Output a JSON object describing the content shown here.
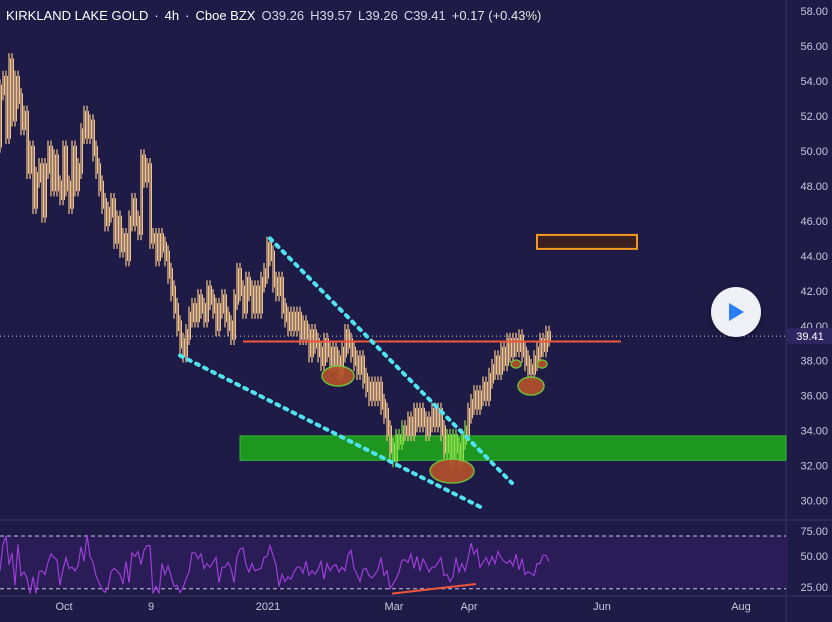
{
  "header": {
    "symbol": "KIRKLAND LAKE GOLD",
    "sep1": "·",
    "interval": "4h",
    "sep2": "·",
    "exchange": "Cboe BZX",
    "open": "O39.26",
    "high": "H39.57",
    "low": "L39.26",
    "close": "C39.41",
    "change": "+0.17 (+0.43%)"
  },
  "colors": {
    "background": "#1f1b47",
    "candle": "#f2c38a",
    "candle_green": "#8be04a",
    "trendline_dotted": "#4fe3f0",
    "resistance_line": "#f0553a",
    "support_zone": "#1e9e1e",
    "target_box_border": "#f39a1e",
    "target_box_fill": "#3a2020",
    "oval_fill": "#b5522a",
    "oval_border": "#7acb3a",
    "rsi_line": "#9b3fd6",
    "rsi_band": "#2a1c57",
    "axis_text": "#c9c6dc"
  },
  "price_axis": {
    "ticks": [
      "58.00",
      "56.00",
      "54.00",
      "52.00",
      "50.00",
      "48.00",
      "46.00",
      "44.00",
      "42.00",
      "40.00",
      "38.00",
      "36.00",
      "34.00",
      "32.00",
      "30.00"
    ],
    "current_price_label": "39.41"
  },
  "rsi_axis": {
    "ticks": [
      "75.00",
      "50.00",
      "50.00",
      "25.00"
    ]
  },
  "time_axis": {
    "labels": [
      "Oct",
      "9",
      "2021",
      "Mar",
      "Apr",
      "Jun",
      "Aug"
    ]
  },
  "chart_data": {
    "type": "candlestick",
    "title": "KIRKLAND LAKE GOLD · 4h · Cboe BZX",
    "ylim": [
      29,
      58.3
    ],
    "current_price": 39.41,
    "price_path": [
      [
        0,
        50.5
      ],
      [
        3,
        53.5
      ],
      [
        6,
        54
      ],
      [
        9,
        51
      ],
      [
        12,
        55
      ],
      [
        15,
        52
      ],
      [
        18,
        54
      ],
      [
        21,
        53
      ],
      [
        24,
        51.5
      ],
      [
        27,
        52
      ],
      [
        30,
        49
      ],
      [
        33,
        50
      ],
      [
        36,
        47
      ],
      [
        39,
        48.5
      ],
      [
        42,
        49
      ],
      [
        45,
        46.5
      ],
      [
        48,
        49
      ],
      [
        51,
        50
      ],
      [
        54,
        48
      ],
      [
        57,
        49.5
      ],
      [
        60,
        48
      ],
      [
        63,
        47.5
      ],
      [
        66,
        50
      ],
      [
        69,
        48
      ],
      [
        72,
        47
      ],
      [
        75,
        50
      ],
      [
        78,
        48
      ],
      [
        81,
        49
      ],
      [
        84,
        51
      ],
      [
        87,
        52
      ],
      [
        90,
        51
      ],
      [
        93,
        51.5
      ],
      [
        96,
        50
      ],
      [
        99,
        49
      ],
      [
        102,
        48
      ],
      [
        105,
        47
      ],
      [
        108,
        46
      ],
      [
        111,
        46.5
      ],
      [
        114,
        47
      ],
      [
        117,
        45
      ],
      [
        120,
        46
      ],
      [
        123,
        44.5
      ],
      [
        126,
        45
      ],
      [
        129,
        44
      ],
      [
        132,
        46
      ],
      [
        135,
        47
      ],
      [
        138,
        46
      ],
      [
        141,
        45.5
      ],
      [
        144,
        49.5
      ],
      [
        147,
        48.5
      ],
      [
        150,
        49
      ],
      [
        153,
        45
      ],
      [
        156,
        45
      ],
      [
        159,
        44
      ],
      [
        162,
        45
      ],
      [
        165,
        44.5
      ],
      [
        168,
        44
      ],
      [
        171,
        43
      ],
      [
        174,
        42
      ],
      [
        177,
        41
      ],
      [
        180,
        40
      ],
      [
        183,
        39
      ],
      [
        186,
        38.5
      ],
      [
        189,
        39.5
      ],
      [
        192,
        40.5
      ],
      [
        195,
        41
      ],
      [
        198,
        40.5
      ],
      [
        201,
        41.5
      ],
      [
        204,
        41
      ],
      [
        207,
        40.5
      ],
      [
        210,
        42
      ],
      [
        213,
        41.5
      ],
      [
        216,
        41
      ],
      [
        219,
        40
      ],
      [
        222,
        41
      ],
      [
        225,
        41.5
      ],
      [
        228,
        40.5
      ],
      [
        231,
        40
      ],
      [
        234,
        39.5
      ],
      [
        237,
        41.5
      ],
      [
        240,
        43
      ],
      [
        243,
        42
      ],
      [
        246,
        41
      ],
      [
        249,
        42.5
      ],
      [
        252,
        42
      ],
      [
        255,
        41
      ],
      [
        258,
        42
      ],
      [
        261,
        41
      ],
      [
        264,
        42.5
      ],
      [
        267,
        43
      ],
      [
        270,
        44.5
      ],
      [
        273,
        44
      ],
      [
        276,
        42.5
      ],
      [
        279,
        42
      ],
      [
        282,
        42.5
      ],
      [
        285,
        41
      ],
      [
        288,
        40.5
      ],
      [
        291,
        40
      ],
      [
        294,
        40.5
      ],
      [
        297,
        40
      ],
      [
        300,
        40.5
      ],
      [
        303,
        39.5
      ],
      [
        306,
        40
      ],
      [
        309,
        39.5
      ],
      [
        312,
        38.5
      ],
      [
        315,
        39.5
      ],
      [
        318,
        39
      ],
      [
        321,
        38.5
      ],
      [
        324,
        38
      ],
      [
        327,
        39
      ],
      [
        330,
        38.5
      ],
      [
        333,
        38
      ],
      [
        336,
        38.5
      ],
      [
        339,
        38
      ],
      [
        342,
        37.5
      ],
      [
        345,
        38.5
      ],
      [
        348,
        39.5
      ],
      [
        351,
        39
      ],
      [
        354,
        38.5
      ],
      [
        357,
        38
      ],
      [
        360,
        37.5
      ],
      [
        363,
        38
      ],
      [
        366,
        37
      ],
      [
        369,
        36.5
      ],
      [
        372,
        36
      ],
      [
        375,
        36.5
      ],
      [
        378,
        36
      ],
      [
        381,
        36.5
      ],
      [
        384,
        35.5
      ],
      [
        387,
        35
      ],
      [
        390,
        34
      ],
      [
        393,
        33
      ],
      [
        396,
        32.5
      ],
      [
        399,
        33.5
      ],
      [
        402,
        33.5
      ],
      [
        405,
        34
      ],
      [
        408,
        34
      ],
      [
        411,
        34.5
      ],
      [
        414,
        34
      ],
      [
        417,
        35
      ],
      [
        420,
        34.5
      ],
      [
        423,
        35
      ],
      [
        426,
        34.5
      ],
      [
        429,
        34
      ],
      [
        432,
        34.5
      ],
      [
        435,
        35
      ],
      [
        438,
        34.5
      ],
      [
        441,
        35
      ],
      [
        444,
        34
      ],
      [
        447,
        33
      ],
      [
        450,
        33.5
      ],
      [
        453,
        32.5
      ],
      [
        456,
        33.5
      ],
      [
        459,
        33
      ],
      [
        462,
        32.5
      ],
      [
        465,
        33.5
      ],
      [
        468,
        34
      ],
      [
        471,
        35
      ],
      [
        474,
        35.5
      ],
      [
        477,
        36
      ],
      [
        480,
        35.5
      ],
      [
        483,
        36
      ],
      [
        486,
        36.5
      ],
      [
        489,
        36
      ],
      [
        492,
        37
      ],
      [
        495,
        37.5
      ],
      [
        498,
        38
      ],
      [
        501,
        37.5
      ],
      [
        504,
        38.5
      ],
      [
        507,
        38
      ],
      [
        510,
        39
      ],
      [
        513,
        38.5
      ],
      [
        516,
        39
      ],
      [
        519,
        38.8
      ],
      [
        522,
        39.2
      ],
      [
        525,
        38.5
      ],
      [
        528,
        38
      ],
      [
        531,
        37.5
      ],
      [
        534,
        37.5
      ],
      [
        537,
        38
      ],
      [
        540,
        38.5
      ],
      [
        543,
        39
      ],
      [
        546,
        38.8
      ],
      [
        549,
        39.4
      ]
    ],
    "resistance_level": 39.1,
    "support_zone": [
      32.3,
      33.7
    ],
    "target_zone": [
      44.4,
      45.2
    ],
    "upper_trendline": [
      [
        270,
        45
      ],
      [
        512,
        31
      ]
    ],
    "lower_trendline": [
      [
        180,
        38.3
      ],
      [
        485,
        29.5
      ]
    ],
    "rsi": {
      "ylim": [
        20,
        80
      ],
      "upper_band": 70,
      "lower_band": 26,
      "divergence_line": [
        [
          392,
          22
        ],
        [
          476,
          30
        ]
      ]
    }
  }
}
